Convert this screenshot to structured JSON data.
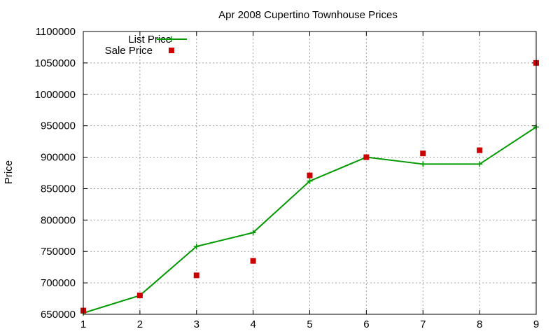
{
  "chart_data": {
    "type": "line",
    "title": "Apr 2008 Cupertino Townhouse Prices",
    "xlabel": "",
    "ylabel": "Price",
    "x": [
      1,
      2,
      3,
      4,
      5,
      6,
      7,
      8,
      9
    ],
    "xlim": [
      1,
      9
    ],
    "ylim": [
      650000,
      1100000
    ],
    "x_ticks": [
      "1",
      "2",
      "3",
      "4",
      "5",
      "6",
      "7",
      "8",
      "9"
    ],
    "y_ticks": [
      "650000",
      "700000",
      "750000",
      "800000",
      "850000",
      "900000",
      "950000",
      "1000000",
      "1050000",
      "1100000"
    ],
    "grid": true,
    "legend_position": "top-left",
    "series": [
      {
        "name": "List Price",
        "style": "line+points",
        "marker": "plus",
        "color": "#009900",
        "values": [
          652000,
          680000,
          758000,
          780000,
          862000,
          900000,
          889000,
          889000,
          948000
        ]
      },
      {
        "name": "Sale Price",
        "style": "points",
        "marker": "square",
        "color": "#cc0000",
        "values": [
          656000,
          680000,
          712000,
          735000,
          871000,
          900000,
          906000,
          911000,
          1050000
        ]
      }
    ]
  }
}
